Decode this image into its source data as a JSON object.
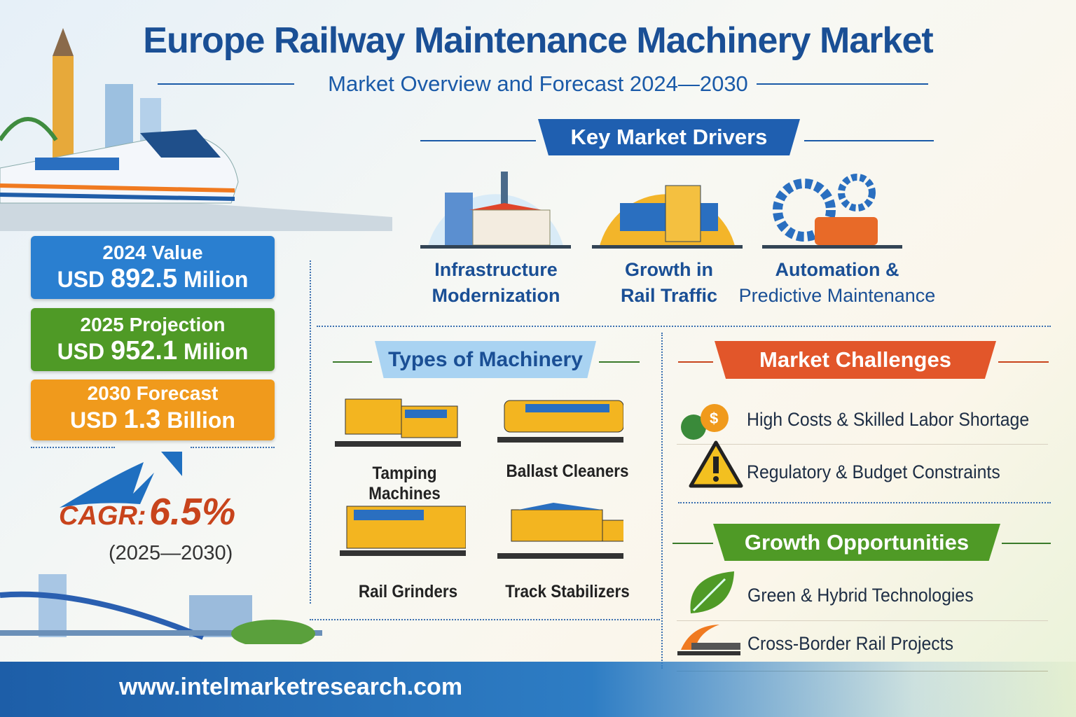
{
  "header": {
    "title": "Europe Railway Maintenance Machinery Market",
    "subtitle": "Market Overview and Forecast 2024—2030"
  },
  "stats": [
    {
      "label": "2024 Value",
      "prefix": "USD",
      "value": "892.5",
      "unit": "Milion",
      "color": "#2a7fd0"
    },
    {
      "label": "2025 Projection",
      "prefix": "USD",
      "value": "952.1",
      "unit": "Milion",
      "color": "#4f9a26"
    },
    {
      "label": "2030 Forecast",
      "prefix": "USD",
      "value": "1.3",
      "unit": "Billion",
      "color": "#f09a1c"
    }
  ],
  "cagr": {
    "label": "CAGR:",
    "value": "6.5%",
    "period": "(2025—2030)"
  },
  "drivers": {
    "title": "Key Market Drivers",
    "items": [
      {
        "line1": "Infrastructure",
        "line2": "Modernization",
        "icon": "city-building-icon"
      },
      {
        "line1": "Growth in",
        "line2": "Rail Traffic",
        "icon": "train-station-icon"
      },
      {
        "line1": "Automation &",
        "line2": "Predictive Maintenance",
        "icon": "gears-train-icon"
      }
    ]
  },
  "machinery": {
    "title": "Types of Machinery",
    "items": [
      "Tamping Machines",
      "Ballast Cleaners",
      "Rail Grinders",
      "Track Stabilizers"
    ]
  },
  "challenges": {
    "title": "Market Challenges",
    "items": [
      {
        "text": "High Costs & Skilled Labor Shortage",
        "icon": "gear-dollar-icon"
      },
      {
        "text": "Regulatory & Budget Constraints",
        "icon": "warning-icon"
      }
    ]
  },
  "opportunities": {
    "title": "Growth Opportunities",
    "items": [
      {
        "text": "Green & Hybrid Technologies",
        "icon": "leaf-icon"
      },
      {
        "text": "Cross-Border Rail Projects",
        "icon": "bridge-icon"
      }
    ]
  },
  "footer": {
    "url": "www.intelmarketresearch.com"
  },
  "colors": {
    "primary": "#1a4f95",
    "challenge": "#e2562a",
    "growth": "#4f9a26",
    "accent": "#f09a1c"
  }
}
